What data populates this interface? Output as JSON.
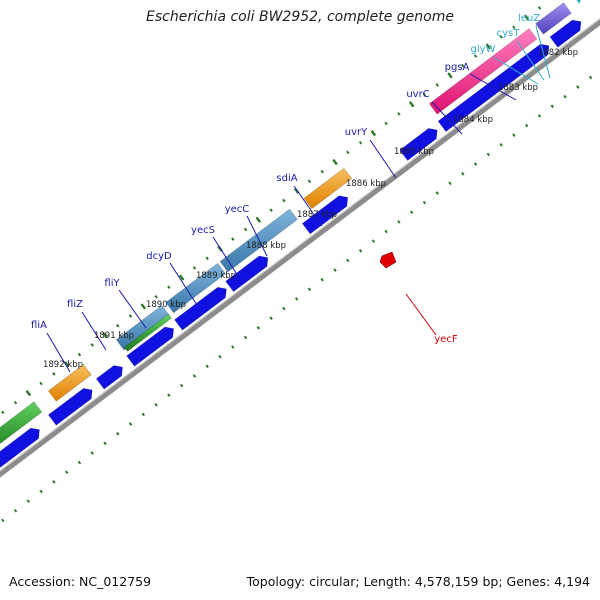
{
  "title": "Escherichia coli BW2952, complete genome",
  "footer": {
    "accession": "Accession: NC_012759",
    "summary": "Topology: circular; Length: 4,578,159 bp; Genes: 4,194"
  },
  "colors": {
    "background": "#ffffff",
    "gene_label": "#1a1aa8",
    "trna_label": "#33aacc",
    "feature_label": "#cc0000",
    "cds_blue": "#1010e0",
    "backbone": "#8c8c8c",
    "tick_green": "#2a7a2a"
  },
  "kbp_labels": [
    "1882 kbp",
    "1883 kbp",
    "1884 kbp",
    "1885 kbp",
    "1886 kbp",
    "1887 kbp",
    "1888 kbp",
    "1889 kbp",
    "1890 kbp",
    "1891 kbp",
    "1892 kbp"
  ],
  "gene_labels": [
    {
      "name": "leuZ",
      "kind": "trna"
    },
    {
      "name": "cysT",
      "kind": "trna"
    },
    {
      "name": "glyW",
      "kind": "trna"
    },
    {
      "name": "pgsA",
      "kind": "gene"
    },
    {
      "name": "uvrC",
      "kind": "gene"
    },
    {
      "name": "uvrY",
      "kind": "gene"
    },
    {
      "name": "sdiA",
      "kind": "gene"
    },
    {
      "name": "yecC",
      "kind": "gene"
    },
    {
      "name": "yecS",
      "kind": "gene"
    },
    {
      "name": "dcyD",
      "kind": "gene"
    },
    {
      "name": "fliY",
      "kind": "gene"
    },
    {
      "name": "fliZ",
      "kind": "gene"
    },
    {
      "name": "fliA",
      "kind": "gene"
    },
    {
      "name": "yecF",
      "kind": "feature"
    }
  ]
}
